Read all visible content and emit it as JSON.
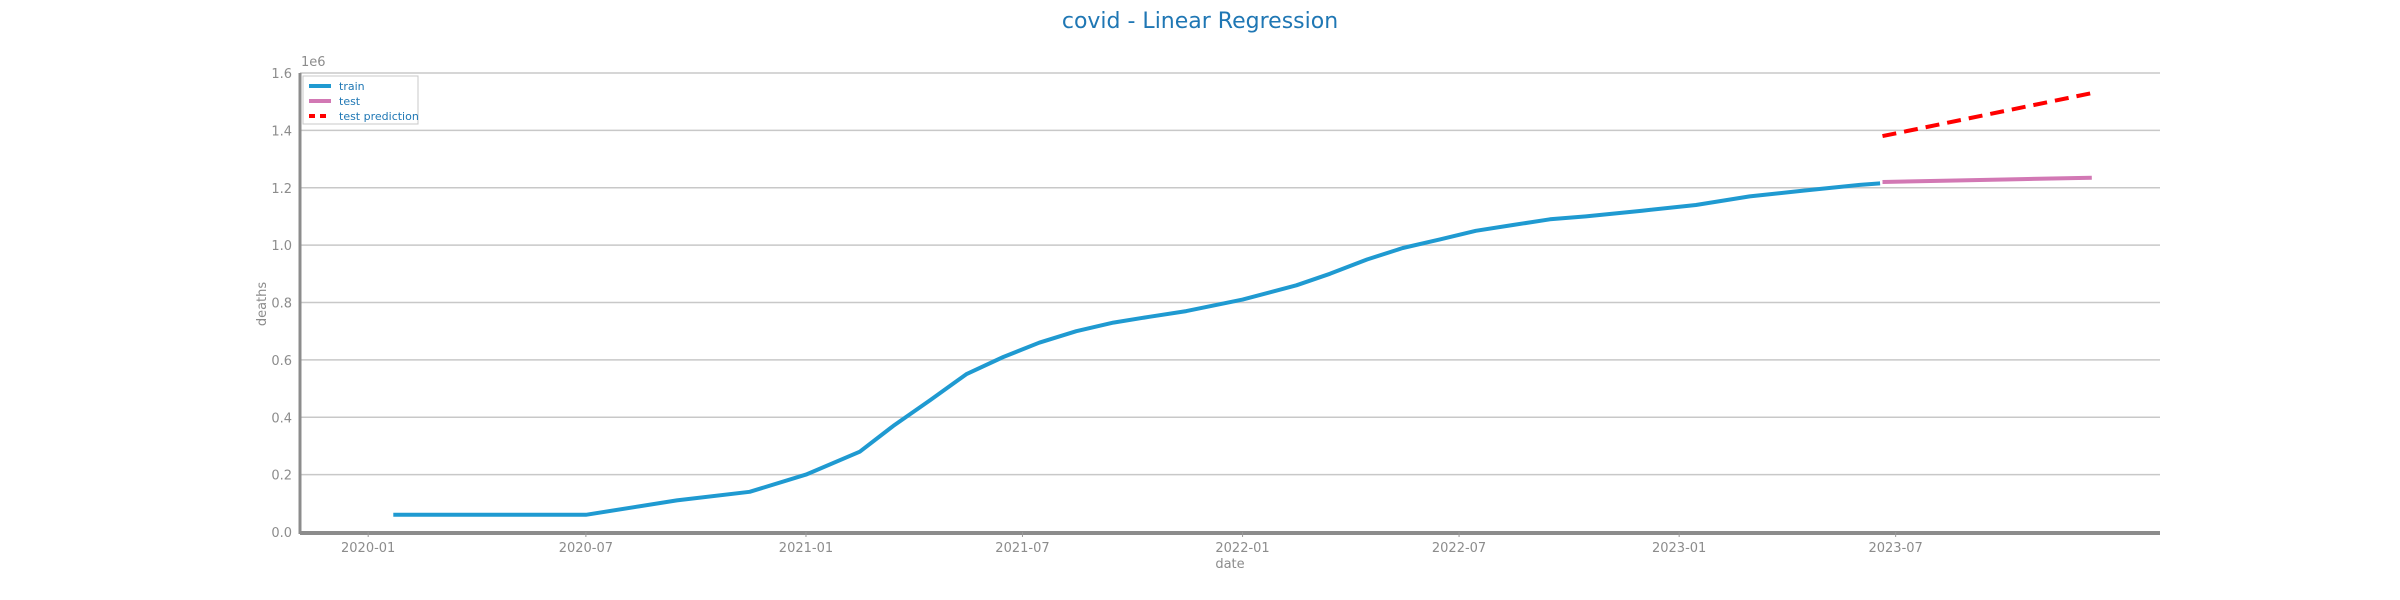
{
  "chart_data": {
    "type": "line",
    "title": "covid - Linear Regression",
    "xlabel": "date",
    "ylabel": "deaths",
    "y_offset_label": "1e6",
    "x_ticks": [
      "2020-01",
      "2020-07",
      "2021-01",
      "2021-07",
      "2022-01",
      "2022-07",
      "2023-01",
      "2023-07"
    ],
    "y_ticks": [
      "0.0",
      "0.2",
      "0.4",
      "0.6",
      "0.8",
      "1.0",
      "1.2",
      "1.4",
      "1.6"
    ],
    "xlim": [
      "2019-11-05",
      "2024-02-07"
    ],
    "ylim": [
      0,
      1.6
    ],
    "y_scale_factor": 1000000,
    "grid": "horizontal",
    "legend_position": "top-left",
    "series": [
      {
        "name": "train",
        "color": "#1f9ad1",
        "style": "solid",
        "points": [
          {
            "x": "2020-01-22",
            "y": 0.06
          },
          {
            "x": "2020-07-01",
            "y": 0.06
          },
          {
            "x": "2020-09-15",
            "y": 0.11
          },
          {
            "x": "2020-11-15",
            "y": 0.14
          },
          {
            "x": "2021-01-01",
            "y": 0.2
          },
          {
            "x": "2021-02-15",
            "y": 0.28
          },
          {
            "x": "2021-03-15",
            "y": 0.37
          },
          {
            "x": "2021-04-15",
            "y": 0.46
          },
          {
            "x": "2021-05-15",
            "y": 0.55
          },
          {
            "x": "2021-06-15",
            "y": 0.61
          },
          {
            "x": "2021-07-15",
            "y": 0.66
          },
          {
            "x": "2021-08-15",
            "y": 0.7
          },
          {
            "x": "2021-09-15",
            "y": 0.73
          },
          {
            "x": "2021-10-15",
            "y": 0.75
          },
          {
            "x": "2021-11-15",
            "y": 0.77
          },
          {
            "x": "2022-01-01",
            "y": 0.81
          },
          {
            "x": "2022-02-15",
            "y": 0.86
          },
          {
            "x": "2022-03-15",
            "y": 0.9
          },
          {
            "x": "2022-04-15",
            "y": 0.95
          },
          {
            "x": "2022-05-15",
            "y": 0.99
          },
          {
            "x": "2022-06-15",
            "y": 1.02
          },
          {
            "x": "2022-07-15",
            "y": 1.05
          },
          {
            "x": "2022-08-15",
            "y": 1.07
          },
          {
            "x": "2022-09-15",
            "y": 1.09
          },
          {
            "x": "2022-10-15",
            "y": 1.1
          },
          {
            "x": "2022-12-01",
            "y": 1.12
          },
          {
            "x": "2023-01-15",
            "y": 1.14
          },
          {
            "x": "2023-03-01",
            "y": 1.17
          },
          {
            "x": "2023-04-15",
            "y": 1.19
          },
          {
            "x": "2023-06-01",
            "y": 1.21
          },
          {
            "x": "2023-06-18",
            "y": 1.215
          }
        ]
      },
      {
        "name": "test",
        "color": "#d278b4",
        "style": "solid",
        "points": [
          {
            "x": "2023-06-20",
            "y": 1.22
          },
          {
            "x": "2023-08-15",
            "y": 1.225
          },
          {
            "x": "2023-10-15",
            "y": 1.23
          },
          {
            "x": "2023-12-12",
            "y": 1.235
          }
        ]
      },
      {
        "name": "test prediction",
        "color": "#ff0000",
        "style": "dashed",
        "points": [
          {
            "x": "2023-06-20",
            "y": 1.38
          },
          {
            "x": "2023-12-12",
            "y": 1.53
          }
        ]
      }
    ]
  }
}
